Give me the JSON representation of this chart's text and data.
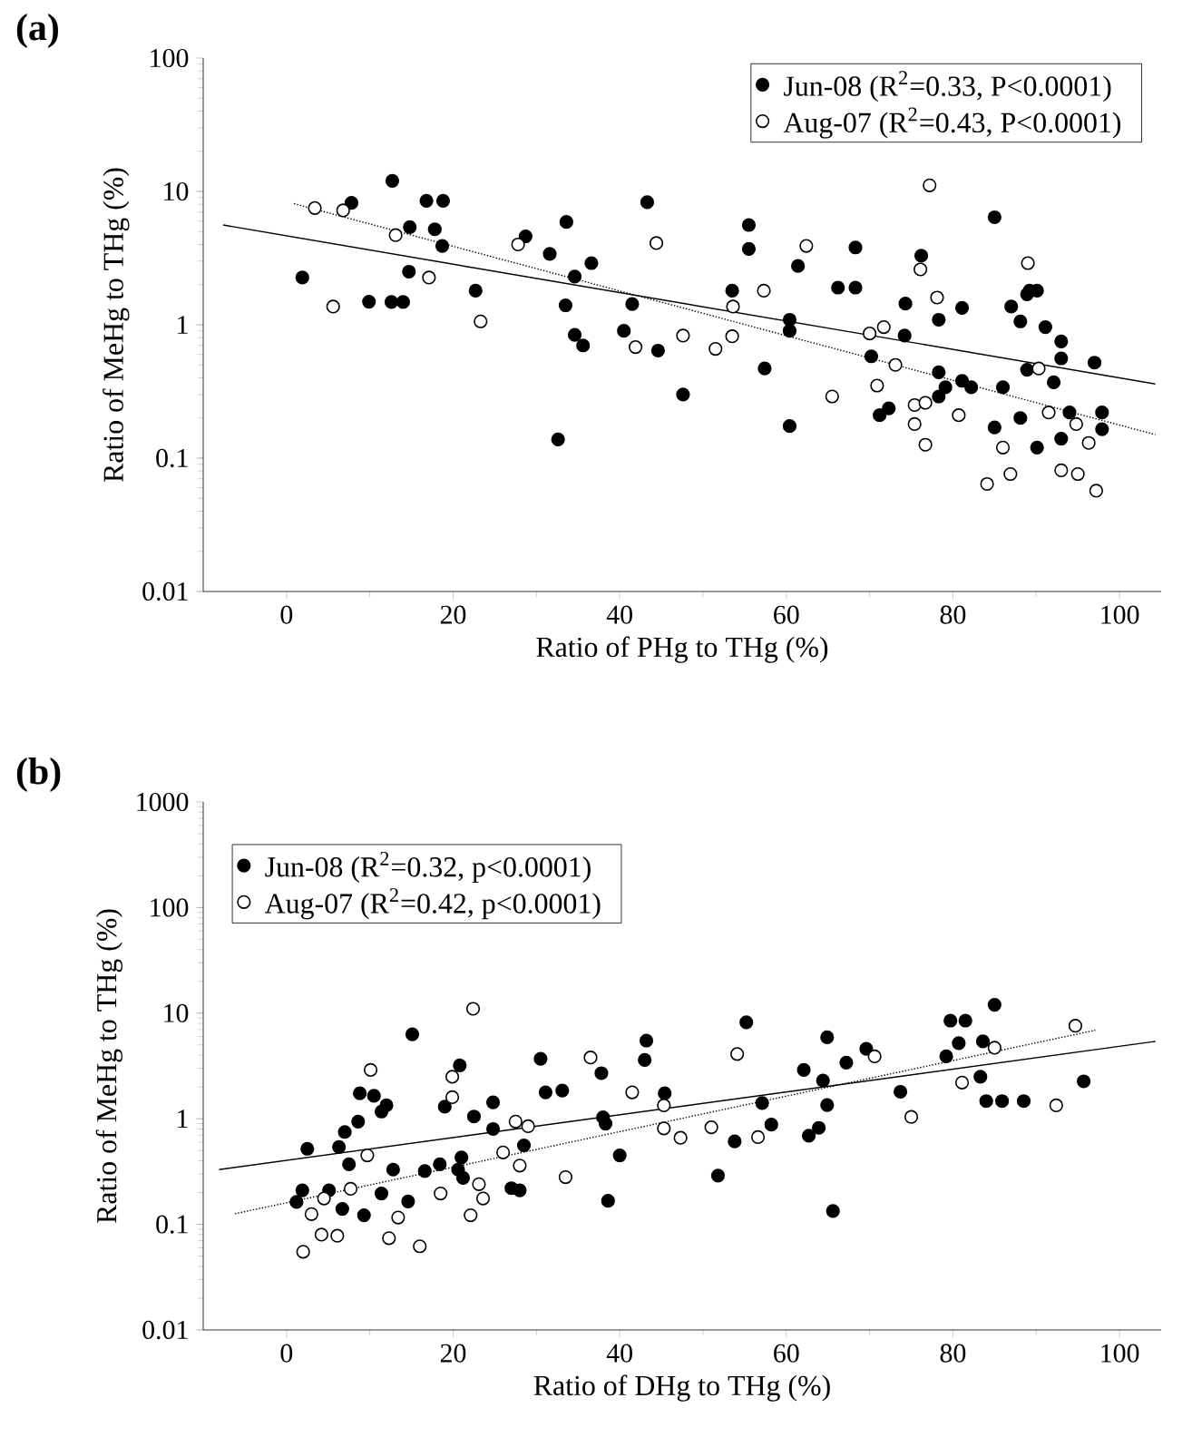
{
  "chart_data": [
    {
      "type": "scatter",
      "title": "(a)",
      "xlabel": "Ratio of PHg to THg (%)",
      "ylabel": "Ratio of MeHg to THg (%)",
      "xlim": [
        -10,
        105
      ],
      "ylim": [
        0.01,
        100
      ],
      "xticks": [
        0,
        20,
        40,
        60,
        80,
        100
      ],
      "yticks": [
        0.01,
        0.1,
        1,
        10,
        100
      ],
      "log": "y",
      "legend": "top right",
      "marker": "circle",
      "series": [
        {
          "name": "Jun-08 (R$^{2}$=0.33, P<0.0001)",
          "color": "#000000",
          "x": [
            1.9,
            9.9,
            7.8,
            12.7,
            12.6,
            14.0,
            14.8,
            14.7,
            16.8,
            18.8,
            17.8,
            18.7,
            22.7,
            28.7,
            31.6,
            33.6,
            33.5,
            34.6,
            34.6,
            35.6,
            36.6,
            32.6,
            40.5,
            41.5,
            43.3,
            44.6,
            47.6,
            55.5,
            55.5,
            53.5,
            57.4,
            60.4,
            61.4,
            60.4,
            60.4,
            66.2,
            68.3,
            68.3,
            70.2,
            71.2,
            72.3,
            74.3,
            74.2,
            76.2,
            78.3,
            78.3,
            78.3,
            79.1,
            81.1,
            81.1,
            82.2,
            85.0,
            85.0,
            86.0,
            87.0,
            88.1,
            88.1,
            88.9,
            89.2,
            90.1,
            88.9,
            90.1,
            91.1,
            92.1,
            93.0,
            93.0,
            93.0,
            94.0,
            97.0,
            97.9,
            97.9
          ],
          "values": [
            2.26,
            1.49,
            8.2,
            12,
            1.48,
            1.48,
            5.4,
            2.5,
            8.5,
            8.5,
            5.2,
            3.9,
            1.8,
            4.6,
            3.4,
            5.9,
            1.4,
            2.3,
            0.84,
            0.7,
            2.9,
            0.138,
            0.9,
            1.43,
            8.3,
            0.64,
            0.3,
            5.6,
            3.7,
            1.8,
            0.47,
            0.174,
            2.76,
            1.09,
            0.9,
            1.9,
            1.9,
            3.8,
            0.58,
            0.21,
            0.236,
            1.44,
            0.83,
            3.3,
            1.09,
            0.44,
            0.29,
            0.34,
            1.34,
            0.38,
            0.34,
            6.4,
            0.17,
            0.34,
            1.37,
            0.2,
            1.06,
            1.69,
            1.8,
            1.8,
            0.46,
            0.12,
            0.96,
            0.37,
            0.75,
            0.56,
            0.14,
            0.22,
            0.52,
            0.22,
            0.165
          ]
        },
        {
          "name": "Aug-07 (R$^{2}$=0.43, P<0.0001)",
          "color": "#ffffff",
          "x": [
            3.4,
            6.8,
            5.6,
            13.1,
            17.1,
            23.3,
            27.8,
            41.9,
            44.4,
            47.6,
            51.5,
            53.5,
            53.6,
            57.3,
            62.4,
            65.5,
            70.0,
            71.7,
            70.9,
            73.1,
            75.4,
            76.7,
            75.4,
            76.7,
            76.1,
            77.2,
            78.1,
            80.7,
            84.1,
            86.0,
            86.9,
            89.0,
            90.3,
            91.5,
            93.0,
            94.8,
            95.0,
            96.3,
            97.2
          ],
          "values": [
            7.5,
            7.2,
            1.37,
            4.7,
            2.26,
            1.06,
            4.0,
            0.68,
            4.1,
            0.83,
            0.66,
            0.82,
            1.37,
            1.8,
            3.9,
            0.29,
            0.86,
            0.96,
            0.35,
            0.5,
            0.25,
            0.26,
            0.18,
            0.126,
            2.6,
            11.1,
            1.6,
            0.21,
            0.064,
            0.12,
            0.076,
            2.9,
            0.47,
            0.22,
            0.081,
            0.18,
            0.076,
            0.13,
            0.057
          ]
        },
        {
          "type": "line",
          "color": "#000000",
          "line_style": "solid",
          "marker": "none",
          "x": [
            -7.6,
            104.3
          ],
          "values": [
            5.6,
            0.36
          ]
        },
        {
          "type": "line",
          "color": "#000000",
          "line_style": "dotted",
          "marker": "none",
          "x": [
            0.9,
            104.3
          ],
          "values": [
            8.1,
            0.15
          ]
        }
      ]
    },
    {
      "type": "scatter",
      "title": "(b)",
      "xlabel": "Ratio of DHg to THg (%)",
      "ylabel": "Ratio of MeHg to THg (%)",
      "xlim": [
        -10,
        105
      ],
      "ylim": [
        0.01,
        1000
      ],
      "xticks": [
        0,
        20,
        40,
        60,
        80,
        100
      ],
      "yticks": [
        0.01,
        0.1,
        1,
        10,
        100,
        1000
      ],
      "log": "y",
      "legend": "top left",
      "marker": "circle",
      "series": [
        {
          "name": "Jun-08 (R$^{2}$=0.32, p<0.0001)",
          "color": "#000000",
          "x": [
            1.2,
            1.9,
            2.5,
            5.1,
            6.3,
            6.7,
            7.0,
            7.5,
            8.6,
            8.8,
            9.3,
            10.5,
            11.4,
            12.0,
            11.4,
            12.8,
            14.6,
            15.1,
            16.6,
            18.4,
            19.0,
            20.8,
            20.6,
            21.0,
            21.2,
            22.5,
            24.8,
            24.8,
            27.0,
            28.0,
            28.5,
            30.5,
            31.1,
            33.1,
            37.8,
            38.0,
            38.3,
            40.0,
            38.6,
            43.0,
            43.2,
            45.4,
            51.8,
            55.2,
            53.8,
            57.1,
            58.2,
            62.1,
            62.7,
            63.9,
            64.4,
            64.9,
            64.9,
            65.6,
            67.2,
            69.6,
            73.7,
            79.2,
            79.7,
            81.5,
            80.7,
            83.6,
            83.3,
            84.0,
            85.9,
            85.0,
            88.5,
            95.7
          ],
          "values": [
            0.163,
            0.21,
            0.52,
            0.21,
            0.54,
            0.14,
            0.75,
            0.37,
            0.94,
            1.74,
            0.122,
            1.65,
            1.17,
            1.34,
            0.196,
            0.33,
            0.165,
            6.3,
            0.32,
            0.37,
            1.3,
            3.2,
            0.33,
            0.43,
            0.275,
            1.05,
            1.43,
            0.8,
            0.22,
            0.21,
            0.56,
            3.7,
            1.78,
            1.85,
            2.7,
            1.03,
            0.9,
            0.45,
            0.167,
            3.6,
            5.5,
            1.74,
            0.29,
            8.2,
            0.61,
            1.41,
            0.88,
            2.9,
            0.69,
            0.82,
            2.3,
            1.35,
            5.9,
            0.134,
            3.4,
            4.6,
            1.8,
            3.9,
            8.5,
            8.5,
            5.2,
            5.4,
            2.5,
            1.47,
            1.47,
            12,
            1.47,
            2.26
          ]
        },
        {
          "name": "Aug-07 (R$^{2}$=0.42, p<0.0001)",
          "color": "#ffffff",
          "x": [
            2.0,
            3.0,
            4.2,
            4.5,
            6.1,
            7.7,
            9.7,
            10.1,
            12.3,
            13.4,
            16.0,
            18.5,
            19.9,
            19.9,
            22.1,
            22.4,
            23.1,
            23.6,
            26.0,
            27.5,
            28.0,
            29.0,
            33.5,
            36.5,
            41.5,
            45.3,
            45.3,
            47.3,
            51.0,
            54.1,
            56.6,
            70.6,
            75.0,
            81.1,
            85.0,
            92.4,
            94.7
          ],
          "values": [
            0.055,
            0.125,
            0.08,
            0.176,
            0.078,
            0.217,
            0.45,
            2.9,
            0.074,
            0.116,
            0.062,
            0.196,
            2.5,
            1.6,
            0.122,
            11,
            0.24,
            0.176,
            0.48,
            0.94,
            0.36,
            0.85,
            0.28,
            3.8,
            1.78,
            1.34,
            0.81,
            0.66,
            0.83,
            4.1,
            0.67,
            3.9,
            1.04,
            2.2,
            4.7,
            1.34,
            7.6
          ]
        },
        {
          "type": "line",
          "color": "#000000",
          "line_style": "solid",
          "marker": "none",
          "x": [
            -8.1,
            104.3
          ],
          "values": [
            0.33,
            5.4
          ]
        },
        {
          "type": "line",
          "color": "#000000",
          "line_style": "dotted",
          "marker": "none",
          "x": [
            -6.2,
            97.1
          ],
          "values": [
            0.126,
            6.9
          ]
        }
      ]
    }
  ]
}
